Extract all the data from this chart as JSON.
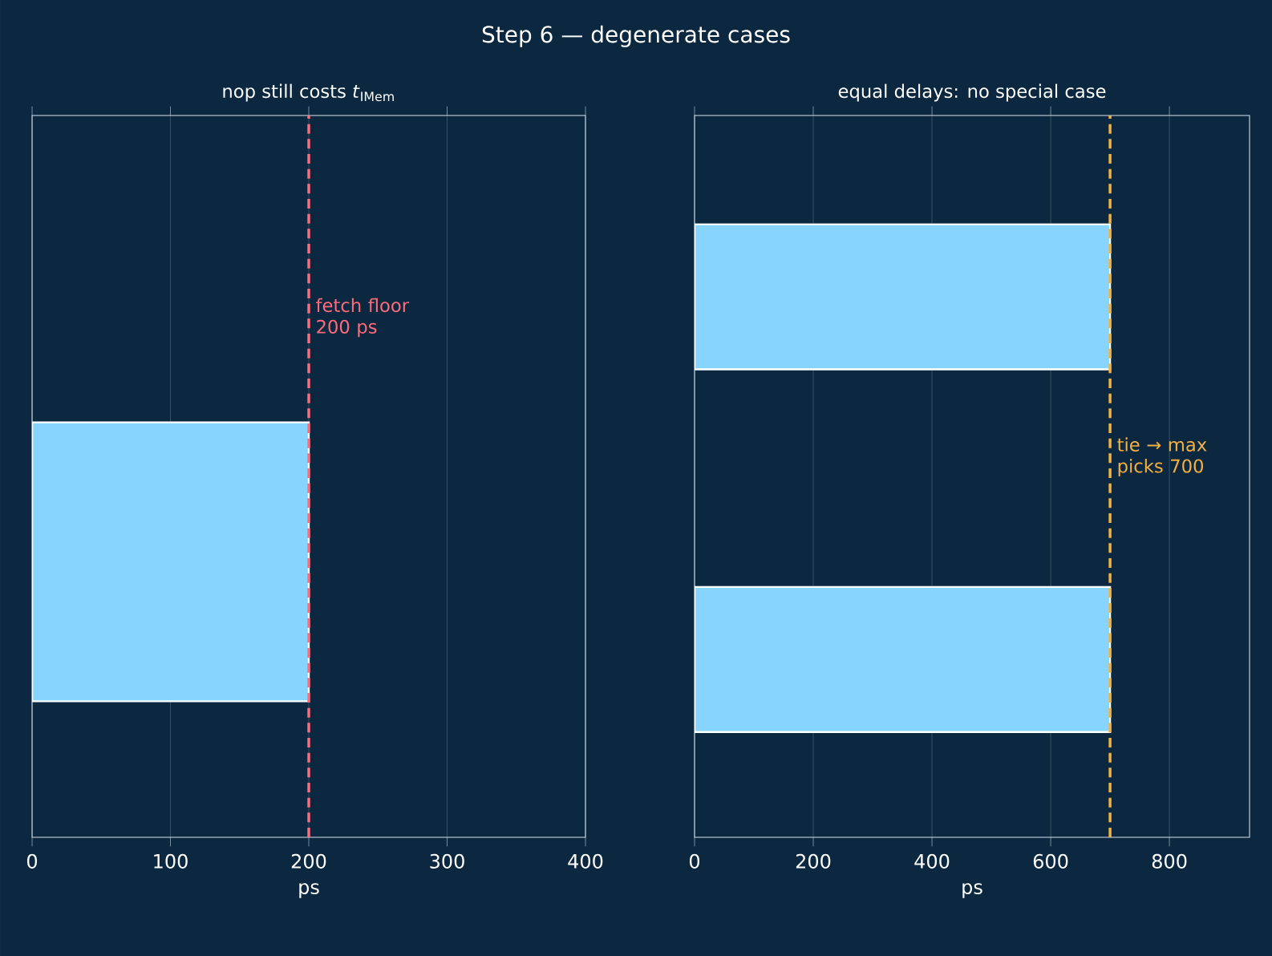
{
  "chart_data": [
    {
      "type": "bar",
      "orientation": "horizontal",
      "title": "Step 6 — degenerate cases",
      "subtitle": "nop still costs *t*$_{IMem}$",
      "xlabel": "ps",
      "categories": [
        null
      ],
      "values": [
        200
      ],
      "color": "#87d4fe",
      "xlim": [
        0,
        400
      ],
      "xticks": [
        0,
        100,
        200,
        300,
        400
      ],
      "grid": "x",
      "tick_labels": "x",
      "ref_lines": [
        {
          "axis": "x",
          "value": 200,
          "label": "fetch floor 200 ps",
          "color": "#ff6b7a",
          "line_style": "dashed"
        }
      ]
    },
    {
      "type": "bar",
      "orientation": "horizontal",
      "subtitle": "equal delays: no special case",
      "xlabel": "ps",
      "categories": [
        null,
        null
      ],
      "values": [
        700,
        700
      ],
      "color": "#87d4fe",
      "xlim": [
        0,
        935
      ],
      "xticks": [
        0,
        200,
        400,
        600,
        800
      ],
      "grid": "x",
      "tick_labels": "x",
      "ref_lines": [
        {
          "axis": "x",
          "value": 700,
          "label": "tie → max picks 700",
          "color": "#f5b041",
          "line_style": "dashed"
        }
      ]
    }
  ]
}
